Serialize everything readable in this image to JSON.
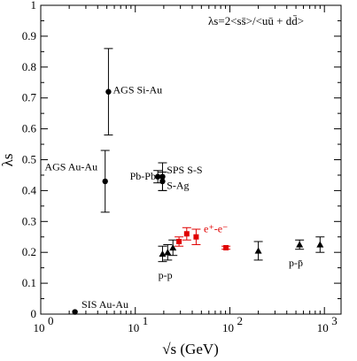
{
  "chart_data": {
    "type": "scatter",
    "title": "",
    "xlabel": "√s (GeV)",
    "ylabel": "λs",
    "xscale": "log",
    "xlim": [
      1,
      1500
    ],
    "ylim": [
      0,
      1
    ],
    "legend_formula": "λs=2<ss̄>/<uū + dd̄>",
    "xticks": [
      {
        "value": 1,
        "label": "10",
        "exp": "0"
      },
      {
        "value": 10,
        "label": "10",
        "exp": "1"
      },
      {
        "value": 100,
        "label": "10",
        "exp": "2"
      },
      {
        "value": 1000,
        "label": "10",
        "exp": "3"
      }
    ],
    "yticks": [
      {
        "value": 0,
        "label": "0"
      },
      {
        "value": 0.1,
        "label": "0.1"
      },
      {
        "value": 0.2,
        "label": "0.2"
      },
      {
        "value": 0.3,
        "label": "0.3"
      },
      {
        "value": 0.4,
        "label": "0.4"
      },
      {
        "value": 0.5,
        "label": "0.5"
      },
      {
        "value": 0.6,
        "label": "0.6"
      },
      {
        "value": 0.7,
        "label": "0.7"
      },
      {
        "value": 0.8,
        "label": "0.8"
      },
      {
        "value": 0.9,
        "label": "0.9"
      },
      {
        "value": 1,
        "label": "1"
      }
    ],
    "series": [
      {
        "marker": "circle",
        "color": "#000000",
        "points": [
          {
            "x": 2.3,
            "y": 0.007,
            "xerr": 0.15,
            "yerr": 0
          },
          {
            "x": 4.8,
            "y": 0.43,
            "yerr": 0.1
          },
          {
            "x": 5.2,
            "y": 0.72,
            "yerr": 0.14
          },
          {
            "x": 17.3,
            "y": 0.445,
            "yerr": 0.02
          },
          {
            "x": 19.4,
            "y": 0.445,
            "yerr": 0.045
          },
          {
            "x": 19.4,
            "y": 0.43,
            "yerr": 0.03
          }
        ]
      },
      {
        "marker": "triangle",
        "color": "#000000",
        "points": [
          {
            "x": 19.4,
            "y": 0.195,
            "yerr": 0.025
          },
          {
            "x": 22.0,
            "y": 0.2,
            "yerr": 0.025
          },
          {
            "x": 25.0,
            "y": 0.215,
            "yerr": 0.025
          },
          {
            "x": 200,
            "y": 0.205,
            "yerr": 0.03
          },
          {
            "x": 546,
            "y": 0.225,
            "yerr": 0.015
          },
          {
            "x": 900,
            "y": 0.225,
            "yerr": 0.025
          }
        ]
      },
      {
        "marker": "square",
        "color": "#e00000",
        "points": [
          {
            "x": 29,
            "y": 0.235,
            "yerr": 0.015
          },
          {
            "x": 35,
            "y": 0.26,
            "yerr": 0.02
          },
          {
            "x": 44,
            "y": 0.25,
            "yerr": 0.025
          },
          {
            "x": 91,
            "y": 0.215,
            "yerr": 0.005
          }
        ]
      }
    ],
    "annotations": [
      {
        "text": "AGS Si-Au",
        "x": 5.8,
        "y": 0.715,
        "color": "#000000",
        "anchor": "start"
      },
      {
        "text": "AGS Au-Au",
        "x": 1.1,
        "y": 0.465,
        "color": "#000000",
        "anchor": "start"
      },
      {
        "text": "Pb-Pb",
        "x": 16.5,
        "y": 0.435,
        "color": "#000000",
        "anchor": "end"
      },
      {
        "text": "SPS S-S",
        "x": 21.5,
        "y": 0.455,
        "color": "#000000",
        "anchor": "start"
      },
      {
        "text": "S-Ag",
        "x": 21.5,
        "y": 0.405,
        "color": "#000000",
        "anchor": "start"
      },
      {
        "text": "e⁺-e⁻",
        "x": 53,
        "y": 0.265,
        "color": "#e00000",
        "anchor": "start"
      },
      {
        "text": "p-p",
        "x": 17.5,
        "y": 0.115,
        "color": "#000000",
        "anchor": "start"
      },
      {
        "text": "p-p̄",
        "x": 420,
        "y": 0.155,
        "color": "#000000",
        "anchor": "start"
      },
      {
        "text": "SIS Au-Au",
        "x": 2.7,
        "y": 0.02,
        "color": "#000000",
        "anchor": "start"
      }
    ]
  }
}
